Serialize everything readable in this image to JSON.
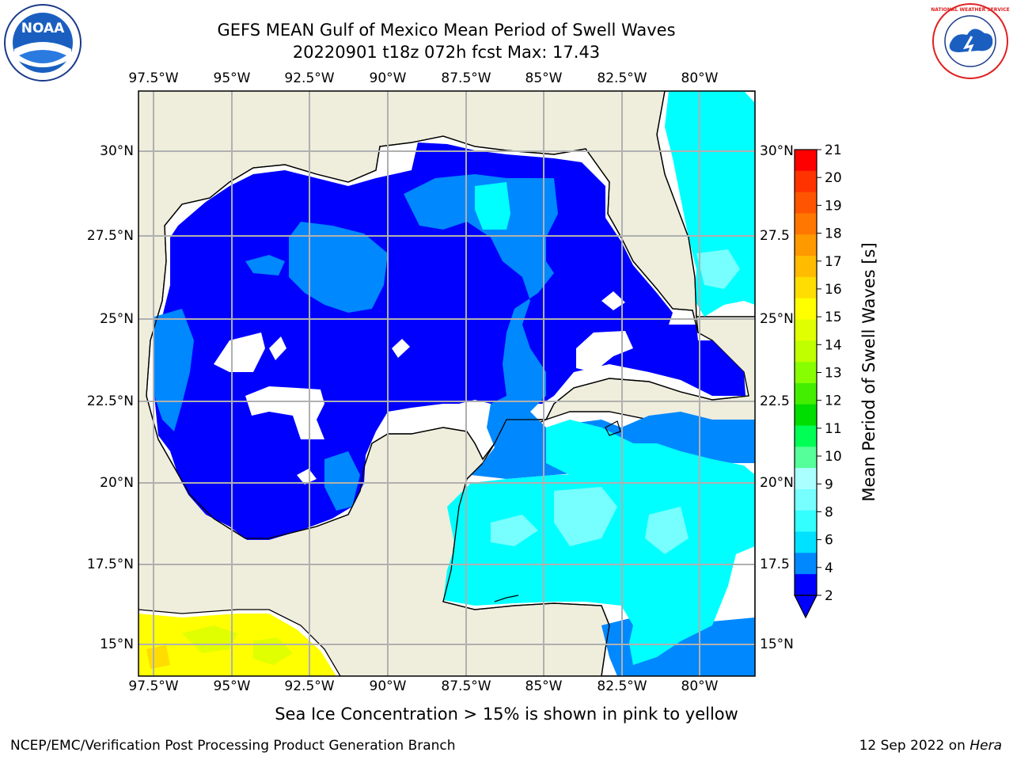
{
  "header": {
    "title_line1": "GEFS MEAN Gulf of Mexico Mean Period of Swell Waves",
    "title_line2": "20220901 t18z 072h fcst   Max: 17.43"
  },
  "map": {
    "lon_labels": [
      "97.5°W",
      "95°W",
      "92.5°W",
      "90°W",
      "87.5°W",
      "85°W",
      "82.5°W",
      "80°W"
    ],
    "lat_labels_left": [
      "30°N",
      "27.5°N",
      "25°N",
      "22.5°N",
      "20°N",
      "17.5°N",
      "15°N"
    ],
    "lat_labels_right": [
      "30°N",
      "27.5",
      "25°N",
      "22.5",
      "20°N",
      "17.5",
      "15°N"
    ],
    "land_color": "#efeddc",
    "grid_color": "#b0b0b0"
  },
  "colorbar": {
    "label": "Mean Period of Swell Waves [s]",
    "ticks": [
      "21",
      "20",
      "19",
      "18",
      "17",
      "16",
      "15",
      "14",
      "13",
      "12",
      "11",
      "10",
      "9",
      "8",
      "6",
      "4",
      "2"
    ],
    "colors": [
      "#ff0000",
      "#ff3300",
      "#ff5500",
      "#ff7700",
      "#ff9900",
      "#ffbb00",
      "#ffdd00",
      "#ffff00",
      "#e0ff00",
      "#c0ff00",
      "#88ff00",
      "#44ee00",
      "#00dd00",
      "#00ff55",
      "#55ff99",
      "#aaffff",
      "#77ffff",
      "#33ffff",
      "#00e0ff",
      "#0088ff",
      "#0000ff"
    ]
  },
  "caption": "Sea Ice Concentration > 15% is shown in pink to yellow",
  "footer": {
    "left": "NCEP/EMC/Verification Post Processing Product Generation Branch",
    "right_prefix": "12 Sep 2022 on ",
    "right_host": "Hera"
  },
  "logos": {
    "noaa_text": "NOAA",
    "nws_text": "NATIONAL WEATHER SERVICE"
  }
}
